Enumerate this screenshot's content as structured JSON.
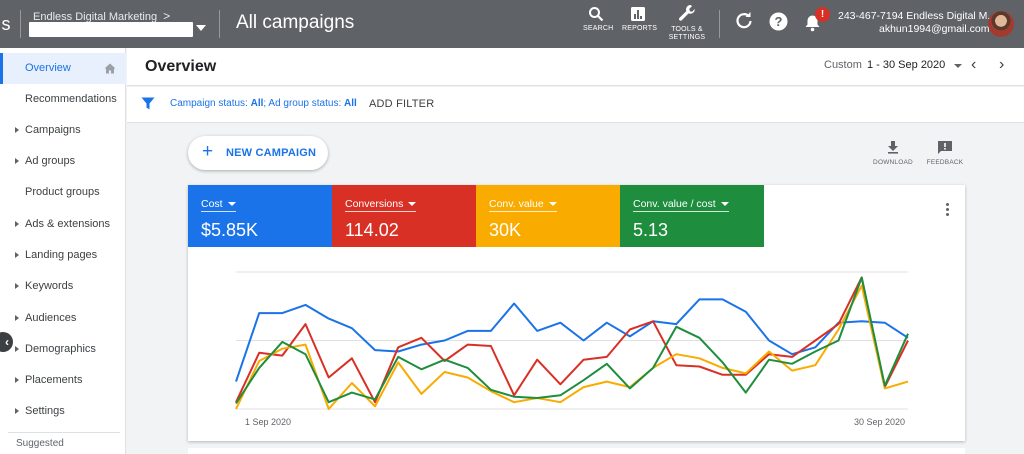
{
  "topbar": {
    "logo_letter": "s",
    "account_name": "Endless Digital Marketing",
    "account_chevron": ">",
    "title": "All campaigns",
    "tools": [
      {
        "label": "SEARCH",
        "icon": "search-icon"
      },
      {
        "label": "REPORTS",
        "icon": "reports-icon"
      },
      {
        "label_line1": "TOOLS &",
        "label_line2": "SETTINGS",
        "icon": "wrench-icon"
      }
    ],
    "notification_badge": "!",
    "user_account": "243-467-7194 Endless Digital M...",
    "user_email": "akhun1994@gmail.com"
  },
  "sidebar": {
    "items": [
      {
        "label": "Overview",
        "active": true
      },
      {
        "label": "Recommendations",
        "arrow": false
      },
      {
        "label": "Campaigns",
        "arrow": true
      },
      {
        "label": "Ad groups",
        "arrow": true
      },
      {
        "label": "Product groups",
        "arrow": false
      },
      {
        "label": "Ads & extensions",
        "arrow": true
      },
      {
        "label": "Landing pages",
        "arrow": true
      },
      {
        "label": "Keywords",
        "arrow": true
      },
      {
        "label": "Audiences",
        "arrow": true
      },
      {
        "label": "Demographics",
        "arrow": true
      },
      {
        "label": "Placements",
        "arrow": true
      },
      {
        "label": "Settings",
        "arrow": true
      }
    ],
    "suggested_label": "Suggested",
    "collapse_glyph": "‹"
  },
  "overview": {
    "title": "Overview",
    "date_label": "Custom",
    "date_range": "1 - 30 Sep 2020",
    "prev_glyph": "‹",
    "next_glyph": "›"
  },
  "filter": {
    "status_prefix": "Campaign status: ",
    "campaign_status": "All",
    "adgroup_prefix": "; Ad group status: ",
    "adgroup_status": "All",
    "add_filter": "ADD FILTER"
  },
  "actions": {
    "new_campaign_plus": "+",
    "new_campaign": "NEW CAMPAIGN",
    "download": "DOWNLOAD",
    "feedback": "FEEDBACK"
  },
  "colors": {
    "blue": "#1a73e8",
    "red": "#d93025",
    "yellow": "#f9ab00",
    "green": "#1e8e3e",
    "topbar": "#5f6368"
  },
  "metrics": [
    {
      "name": "Cost",
      "value": "$5.85K",
      "color": "#1a73e8"
    },
    {
      "name": "Conversions",
      "value": "114.02",
      "color": "#d93025"
    },
    {
      "name": "Conv. value",
      "value": "30K",
      "color": "#f9ab00"
    },
    {
      "name": "Conv. value / cost",
      "value": "5.13",
      "color": "#1e8e3e"
    }
  ],
  "chart_data": {
    "type": "line",
    "title": "",
    "xlabel": "",
    "ylabel": "",
    "x_start_label": "1 Sep 2020",
    "x_end_label": "30 Sep 2020",
    "x": [
      1,
      2,
      3,
      4,
      5,
      6,
      7,
      8,
      9,
      10,
      11,
      12,
      13,
      14,
      15,
      16,
      17,
      18,
      19,
      20,
      21,
      22,
      23,
      24,
      25,
      26,
      27,
      28,
      29,
      30
    ],
    "ylim": [
      0,
      100
    ],
    "series": [
      {
        "name": "Cost",
        "color": "#1a73e8",
        "values": [
          20,
          70,
          70,
          76,
          66,
          59,
          43,
          42,
          47,
          50,
          57,
          57,
          77,
          57,
          63,
          50,
          63,
          53,
          64,
          62,
          80,
          80,
          71,
          50,
          40,
          45,
          63,
          64,
          63,
          52
        ]
      },
      {
        "name": "Conversions",
        "color": "#d93025",
        "values": [
          5,
          41,
          39,
          62,
          23,
          37,
          5,
          45,
          52,
          35,
          47,
          46,
          10,
          36,
          18,
          36,
          38,
          58,
          64,
          32,
          31,
          25,
          25,
          40,
          38,
          50,
          62,
          96,
          16,
          50
        ]
      },
      {
        "name": "Conv. value",
        "color": "#f9ab00",
        "values": [
          0,
          35,
          44,
          47,
          0,
          19,
          2,
          34,
          11,
          27,
          23,
          13,
          5,
          8,
          5,
          16,
          20,
          16,
          30,
          40,
          37,
          30,
          26,
          42,
          28,
          32,
          58,
          90,
          15,
          20
        ]
      },
      {
        "name": "Conv. value / cost",
        "color": "#1e8e3e",
        "values": [
          4,
          30,
          49,
          40,
          5,
          12,
          7,
          38,
          29,
          36,
          30,
          14,
          9,
          8,
          10,
          21,
          33,
          15,
          30,
          60,
          52,
          34,
          12,
          36,
          33,
          42,
          50,
          96,
          17,
          55
        ]
      }
    ]
  }
}
